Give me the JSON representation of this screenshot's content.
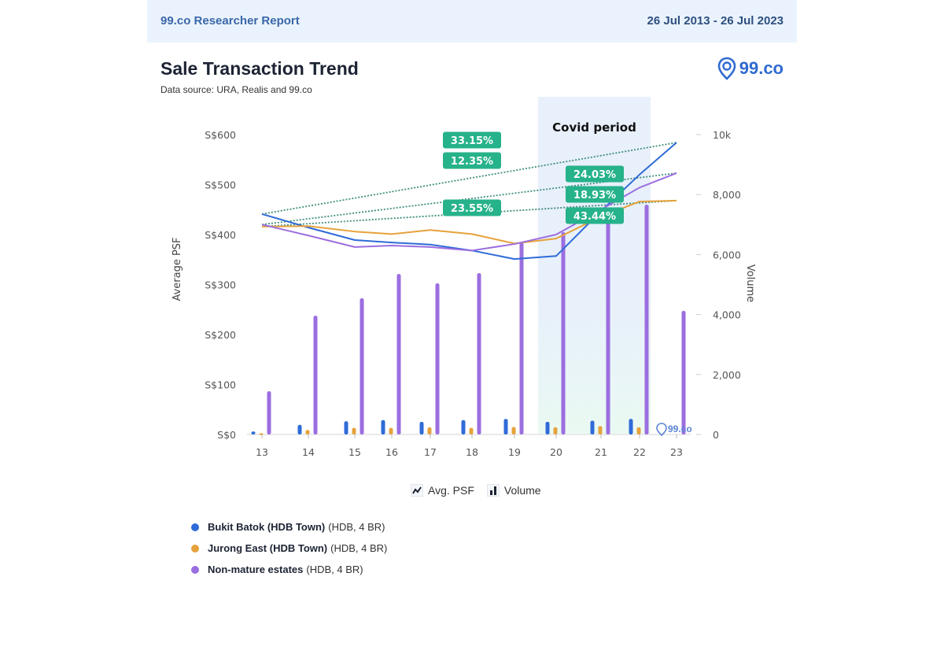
{
  "header": {
    "report_label": "99.co Researcher Report",
    "date_range": "26 Jul 2013 - 26 Jul 2023"
  },
  "title": "Sale Transaction Trend",
  "subtitle": "Data source: URA, Realis and 99.co",
  "logo_text": "99.co",
  "watermark_text": "99.co",
  "colors": {
    "bukit_batok": "#2f6bd8",
    "jurong_east": "#e6a23c",
    "non_mature": "#9b6ee0",
    "badge": "#26b28a",
    "covid_band": "#e8f0fb"
  },
  "chart_data": {
    "type": "bar+line",
    "title": "Sale Transaction Trend",
    "categories": [
      "13",
      "14",
      "15",
      "16",
      "17",
      "18",
      "19",
      "20",
      "21",
      "22",
      "23"
    ],
    "ylabel_left": "Average PSF",
    "ylabel_right": "Volume",
    "ylim_left": [
      0,
      600
    ],
    "ylim_right": [
      0,
      10000
    ],
    "yticks_left": [
      "S$0",
      "S$100",
      "S$200",
      "S$300",
      "S$400",
      "S$500",
      "S$600"
    ],
    "yticks_right": [
      "0",
      "2,000",
      "4,000",
      "6,000",
      "8,000",
      "10k"
    ],
    "annotation": "Covid period",
    "annotation_range": [
      "20",
      "22"
    ],
    "series_lines": [
      {
        "name": "Bukit Batok (HDB Town)",
        "values": [
          441,
          414,
          389,
          384,
          380,
          368,
          351,
          357,
          447,
          520,
          584
        ]
      },
      {
        "name": "Jurong East (HDB Town)",
        "values": [
          416,
          417,
          406,
          401,
          409,
          401,
          382,
          392,
          436,
          466,
          468
        ]
      },
      {
        "name": "Non-mature estates",
        "values": [
          420,
          398,
          375,
          378,
          375,
          368,
          381,
          400,
          450,
          494,
          523
        ]
      }
    ],
    "series_bars": [
      {
        "name": "Bukit Batok (HDB Town)",
        "values": [
          100,
          320,
          440,
          480,
          420,
          480,
          520,
          420,
          460,
          520,
          null
        ]
      },
      {
        "name": "Jurong East (HDB Town)",
        "values": [
          40,
          150,
          220,
          220,
          240,
          220,
          250,
          240,
          280,
          240,
          null
        ]
      },
      {
        "name": "Non-mature estates",
        "values": [
          1440,
          3960,
          4540,
          5350,
          5040,
          5380,
          6400,
          6750,
          7190,
          7660,
          4120
        ]
      }
    ],
    "trendlines": [
      {
        "series": "Bukit Batok (HDB Town)",
        "start": 441,
        "end": 584
      },
      {
        "series": "Non-mature estates",
        "start": 420,
        "end": 523
      },
      {
        "series": "Jurong East (HDB Town)",
        "start": 416,
        "end": 468
      }
    ],
    "badges_period1": [
      "33.15%",
      "12.35%",
      "23.55%"
    ],
    "badges_period2": [
      "24.03%",
      "18.93%",
      "43.44%"
    ],
    "type_legend": [
      "Avg. PSF",
      "Volume"
    ],
    "legend": [
      {
        "name": "Bukit Batok (HDB Town)",
        "detail": "(HDB, 4 BR)"
      },
      {
        "name": "Jurong East (HDB Town)",
        "detail": "(HDB, 4 BR)"
      },
      {
        "name": "Non-mature estates",
        "detail": "(HDB, 4 BR)"
      }
    ]
  }
}
